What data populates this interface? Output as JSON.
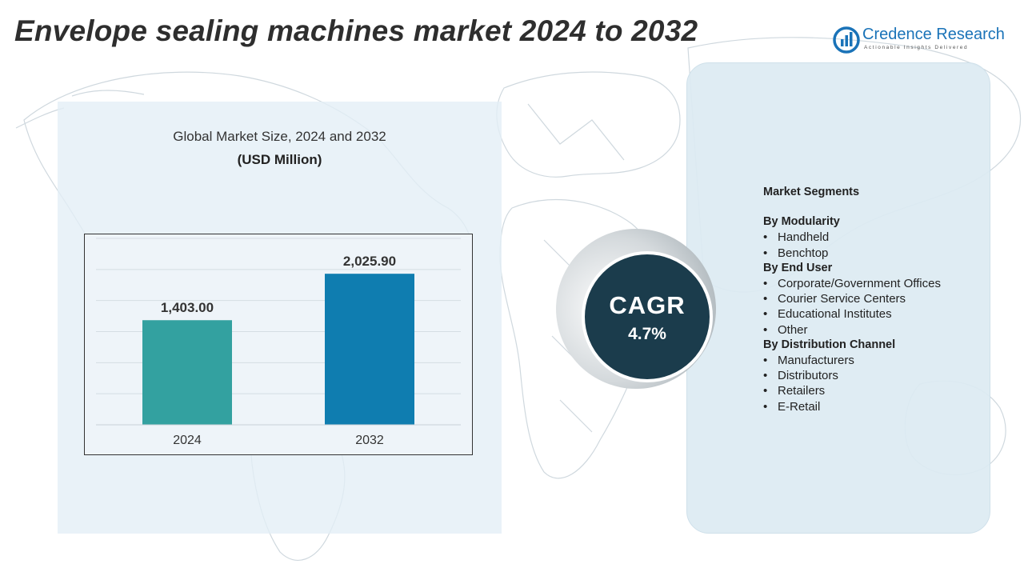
{
  "title": "Envelope sealing machines market 2024 to 2032",
  "logo": {
    "name": "Credence Research",
    "tagline": "Actionable Insights Delivered",
    "icon": "credence-logo-icon",
    "color": "#1a73b8"
  },
  "chart_data": {
    "type": "bar",
    "title": "Global Market Size, 2024 and 2032",
    "subtitle": "(USD Million)",
    "categories": [
      "2024",
      "2032"
    ],
    "values": [
      1403.0,
      2025.9
    ],
    "value_labels": [
      "1,403.00",
      "2,025.90"
    ],
    "colors": [
      "#33a1a0",
      "#0f7db0"
    ],
    "xlabel": "",
    "ylabel": "",
    "ylim": [
      0,
      2500
    ],
    "grid": true
  },
  "cagr": {
    "label": "CAGR",
    "value": "4.7%"
  },
  "segments": {
    "heading": "Market Segments",
    "groups": [
      {
        "label": "By Modularity",
        "items": [
          "Handheld",
          "Benchtop"
        ]
      },
      {
        "label": "By End User",
        "items": [
          "Corporate/Government Offices",
          "Courier Service Centers",
          "Educational Institutes",
          "Other"
        ]
      },
      {
        "label": "By Distribution Channel",
        "items": [
          "Manufacturers",
          "Distributors",
          "Retailers",
          "E-Retail"
        ]
      }
    ]
  }
}
